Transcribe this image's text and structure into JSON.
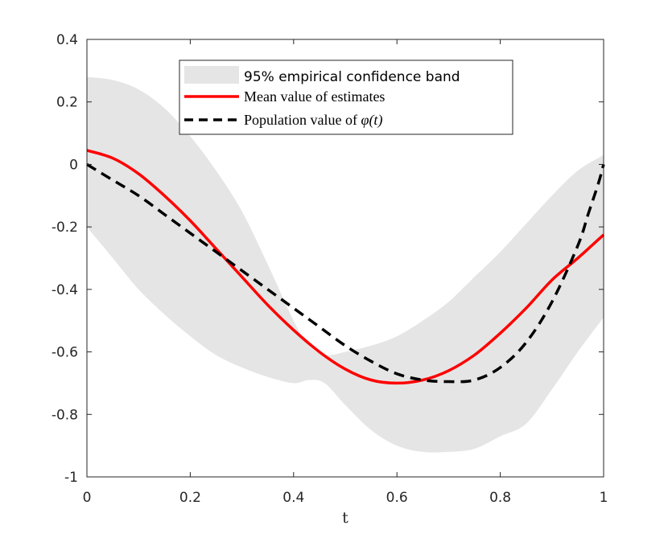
{
  "chart_data": {
    "type": "line",
    "title": "",
    "xlabel": "t",
    "ylabel": "",
    "xlim": [
      0,
      1
    ],
    "ylim": [
      -1,
      0.4
    ],
    "xticks": [
      0,
      0.2,
      0.4,
      0.6,
      0.8,
      1
    ],
    "xtick_labels": [
      "0",
      "0.2",
      "0.4",
      "0.6",
      "0.8",
      "1"
    ],
    "yticks": [
      -1,
      -0.8,
      -0.6,
      -0.4,
      -0.2,
      0,
      0.2,
      0.4
    ],
    "ytick_labels": [
      "-1",
      "-0.8",
      "-0.6",
      "-0.4",
      "-0.2",
      "0",
      "0.2",
      "0.4"
    ],
    "grid": false,
    "legend_position": "top-center",
    "colors": {
      "band": "#e5e5e5",
      "mean": "#ff0000",
      "population": "#000000"
    },
    "band": {
      "name": "95% empirical confidence band",
      "x": [
        0,
        0.05,
        0.1,
        0.15,
        0.2,
        0.25,
        0.3,
        0.35,
        0.4,
        0.43,
        0.46,
        0.5,
        0.55,
        0.6,
        0.65,
        0.7,
        0.75,
        0.8,
        0.85,
        0.9,
        0.95,
        1
      ],
      "upper": [
        0.28,
        0.27,
        0.24,
        0.18,
        0.09,
        -0.02,
        -0.15,
        -0.32,
        -0.5,
        -0.58,
        -0.61,
        -0.6,
        -0.58,
        -0.55,
        -0.5,
        -0.44,
        -0.36,
        -0.28,
        -0.19,
        -0.1,
        -0.02,
        0.03
      ],
      "lower": [
        -0.2,
        -0.3,
        -0.4,
        -0.48,
        -0.55,
        -0.61,
        -0.65,
        -0.68,
        -0.7,
        -0.69,
        -0.7,
        -0.77,
        -0.85,
        -0.9,
        -0.92,
        -0.92,
        -0.91,
        -0.87,
        -0.83,
        -0.72,
        -0.6,
        -0.49
      ]
    },
    "series": [
      {
        "name": "Mean value of estimates",
        "style": "solid",
        "x": [
          0,
          0.05,
          0.1,
          0.15,
          0.2,
          0.25,
          0.3,
          0.35,
          0.4,
          0.45,
          0.5,
          0.55,
          0.6,
          0.65,
          0.7,
          0.75,
          0.8,
          0.85,
          0.9,
          0.95,
          1
        ],
        "values": [
          0.045,
          0.02,
          -0.03,
          -0.1,
          -0.18,
          -0.27,
          -0.36,
          -0.45,
          -0.53,
          -0.6,
          -0.655,
          -0.69,
          -0.7,
          -0.69,
          -0.66,
          -0.61,
          -0.54,
          -0.46,
          -0.37,
          -0.3,
          -0.225
        ]
      },
      {
        "name": "Population value of φ(t)",
        "style": "dashed",
        "x": [
          0,
          0.05,
          0.1,
          0.15,
          0.2,
          0.25,
          0.3,
          0.35,
          0.4,
          0.45,
          0.5,
          0.55,
          0.6,
          0.65,
          0.7,
          0.75,
          0.8,
          0.85,
          0.9,
          0.95,
          0.97,
          0.99,
          1
        ],
        "values": [
          0,
          -0.05,
          -0.1,
          -0.16,
          -0.22,
          -0.28,
          -0.34,
          -0.4,
          -0.46,
          -0.52,
          -0.58,
          -0.63,
          -0.67,
          -0.69,
          -0.695,
          -0.69,
          -0.65,
          -0.57,
          -0.44,
          -0.26,
          -0.16,
          -0.06,
          0
        ]
      }
    ],
    "legend": {
      "band_label": "95% empirical confidence band",
      "mean_label": "Mean value of estimates",
      "population_label_prefix": "Population value of ",
      "population_label_symbol": "φ(t)"
    }
  }
}
